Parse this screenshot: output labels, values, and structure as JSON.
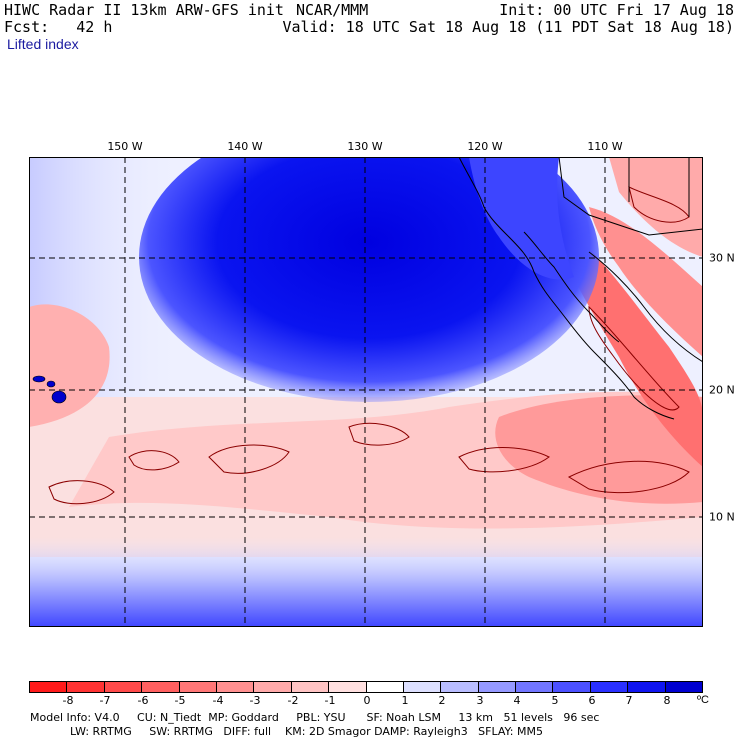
{
  "header": {
    "model_title": "HIWC Radar II 13km ARW-GFS init",
    "org": "NCAR/MMM",
    "init": "Init: 00 UTC Fri 17 Aug 18",
    "forecast": "Fcst:   42 h",
    "valid": "Valid: 18 UTC Sat 18 Aug 18 (11 PDT Sat 18 Aug 18)",
    "field_name": "Lifted index"
  },
  "map": {
    "lon_labels": [
      "150 W",
      "140 W",
      "130 W",
      "120 W",
      "110 W"
    ],
    "lat_labels": [
      "30 N",
      "20 N",
      "10 N"
    ],
    "colors": {
      "strong_stable": "#0000e0",
      "stable": "#6f74ff",
      "neutral": "#fbe6e6",
      "unstable": "#ff6e6e",
      "grid": "#000000",
      "contour": "#8b0000"
    }
  },
  "colorbar": {
    "ticks": [
      "-8",
      "-7",
      "-6",
      "-5",
      "-4",
      "-3",
      "-2",
      "-1",
      "0",
      "1",
      "2",
      "3",
      "4",
      "5",
      "6",
      "7",
      "8"
    ],
    "unit": "ºC",
    "colors": [
      "#ff1a1a",
      "#ff3333",
      "#ff4a4a",
      "#ff6060",
      "#ff7777",
      "#ff9090",
      "#ffaaaa",
      "#ffc4c4",
      "#ffe0e0",
      "#ffffff",
      "#dde0ff",
      "#b9bdff",
      "#9599ff",
      "#7276ff",
      "#4c51ff",
      "#2a30ff",
      "#0f14f0",
      "#0000d0"
    ]
  },
  "model_info": {
    "line1": "Model Info: V4.0     CU: N_Tiedt  MP: Goddard     PBL: YSU      SF: Noah LSM     13 km   51 levels   96 sec",
    "line2": "LW: RRTMG     SW: RRTMG   DIFF: full    KM: 2D Smagor DAMP: Rayleigh3   SFLAY: MM5"
  }
}
